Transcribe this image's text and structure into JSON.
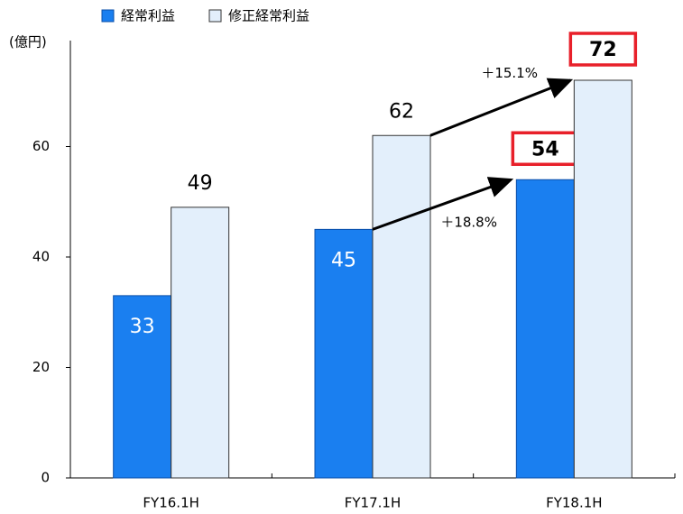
{
  "chart_data": {
    "type": "bar",
    "y_unit": "(億円)",
    "categories": [
      "FY16.1H",
      "FY17.1H",
      "FY18.1H"
    ],
    "series": [
      {
        "name": "経常利益",
        "color": "#1a7ff0",
        "values": [
          33,
          45,
          54
        ],
        "highlight": [
          false,
          false,
          true
        ]
      },
      {
        "name": "修正経常利益",
        "color": "#e3effb",
        "values": [
          49,
          62,
          72
        ],
        "highlight": [
          false,
          false,
          true
        ]
      }
    ],
    "annotations": [
      {
        "text": "＋18.8%",
        "series": 0,
        "from": 1,
        "to": 2
      },
      {
        "text": "＋15.1%",
        "series": 1,
        "from": 1,
        "to": 2
      }
    ],
    "ylim": [
      0,
      80
    ],
    "yticks": [
      0,
      20,
      40,
      60
    ],
    "highlight_color": "#e8202a"
  }
}
